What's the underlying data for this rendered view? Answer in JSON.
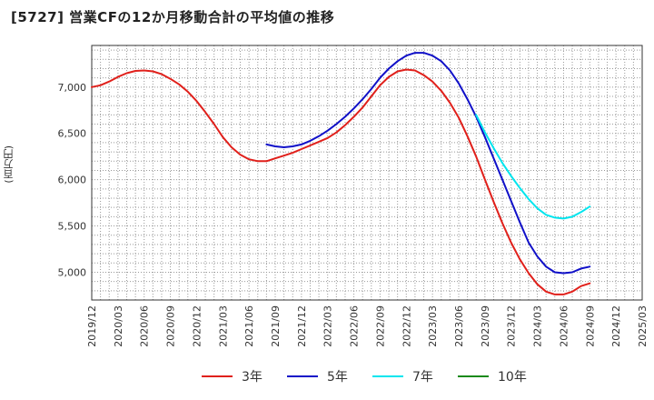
{
  "chart_data": {
    "type": "line",
    "title": "[5727]  営業CFの12か月移動合計の平均値の推移",
    "ylabel": "(百万円)",
    "ylim": [
      4700,
      7450
    ],
    "yticks": [
      5000,
      5500,
      6000,
      6500,
      7000
    ],
    "ytick_labels": [
      "5,000",
      "5,500",
      "6,000",
      "6,500",
      "7,000"
    ],
    "xtick_labels": [
      "2019/12",
      "2020/03",
      "2020/06",
      "2020/09",
      "2020/12",
      "2021/03",
      "2021/06",
      "2021/09",
      "2021/12",
      "2022/03",
      "2022/06",
      "2022/09",
      "2022/12",
      "2023/03",
      "2023/06",
      "2023/09",
      "2023/12",
      "2024/03",
      "2024/06",
      "2024/09",
      "2024/12",
      "2025/03"
    ],
    "x_start": "2019/12",
    "x_end": "2025/03",
    "grid": true,
    "legend_position": "bottom",
    "series": [
      {
        "name": "3年",
        "color": "#e0201b",
        "points": [
          [
            "2019/12",
            7000
          ],
          [
            "2020/01",
            7020
          ],
          [
            "2020/02",
            7060
          ],
          [
            "2020/03",
            7110
          ],
          [
            "2020/04",
            7150
          ],
          [
            "2020/05",
            7175
          ],
          [
            "2020/06",
            7180
          ],
          [
            "2020/07",
            7170
          ],
          [
            "2020/08",
            7140
          ],
          [
            "2020/09",
            7090
          ],
          [
            "2020/10",
            7030
          ],
          [
            "2020/11",
            6950
          ],
          [
            "2020/12",
            6850
          ],
          [
            "2021/01",
            6730
          ],
          [
            "2021/02",
            6600
          ],
          [
            "2021/03",
            6460
          ],
          [
            "2021/04",
            6350
          ],
          [
            "2021/05",
            6270
          ],
          [
            "2021/06",
            6220
          ],
          [
            "2021/07",
            6200
          ],
          [
            "2021/08",
            6200
          ],
          [
            "2021/09",
            6230
          ],
          [
            "2021/10",
            6260
          ],
          [
            "2021/11",
            6290
          ],
          [
            "2021/12",
            6330
          ],
          [
            "2022/01",
            6370
          ],
          [
            "2022/02",
            6410
          ],
          [
            "2022/03",
            6450
          ],
          [
            "2022/04",
            6510
          ],
          [
            "2022/05",
            6590
          ],
          [
            "2022/06",
            6680
          ],
          [
            "2022/07",
            6780
          ],
          [
            "2022/08",
            6900
          ],
          [
            "2022/09",
            7020
          ],
          [
            "2022/10",
            7110
          ],
          [
            "2022/11",
            7170
          ],
          [
            "2022/12",
            7190
          ],
          [
            "2023/01",
            7180
          ],
          [
            "2023/02",
            7130
          ],
          [
            "2023/03",
            7060
          ],
          [
            "2023/04",
            6960
          ],
          [
            "2023/05",
            6830
          ],
          [
            "2023/06",
            6670
          ],
          [
            "2023/07",
            6470
          ],
          [
            "2023/08",
            6250
          ],
          [
            "2023/09",
            6000
          ],
          [
            "2023/10",
            5760
          ],
          [
            "2023/11",
            5530
          ],
          [
            "2023/12",
            5320
          ],
          [
            "2024/01",
            5140
          ],
          [
            "2024/02",
            4990
          ],
          [
            "2024/03",
            4870
          ],
          [
            "2024/04",
            4790
          ],
          [
            "2024/05",
            4760
          ],
          [
            "2024/06",
            4760
          ],
          [
            "2024/07",
            4790
          ],
          [
            "2024/08",
            4850
          ],
          [
            "2024/09",
            4880
          ]
        ]
      },
      {
        "name": "5年",
        "color": "#1010c8",
        "points": [
          [
            "2021/08",
            6380
          ],
          [
            "2021/09",
            6360
          ],
          [
            "2021/10",
            6350
          ],
          [
            "2021/11",
            6360
          ],
          [
            "2021/12",
            6380
          ],
          [
            "2022/01",
            6420
          ],
          [
            "2022/02",
            6470
          ],
          [
            "2022/03",
            6530
          ],
          [
            "2022/04",
            6600
          ],
          [
            "2022/05",
            6680
          ],
          [
            "2022/06",
            6770
          ],
          [
            "2022/07",
            6870
          ],
          [
            "2022/08",
            6980
          ],
          [
            "2022/09",
            7100
          ],
          [
            "2022/10",
            7200
          ],
          [
            "2022/11",
            7280
          ],
          [
            "2022/12",
            7340
          ],
          [
            "2023/01",
            7370
          ],
          [
            "2023/02",
            7370
          ],
          [
            "2023/03",
            7340
          ],
          [
            "2023/04",
            7280
          ],
          [
            "2023/05",
            7180
          ],
          [
            "2023/06",
            7040
          ],
          [
            "2023/07",
            6870
          ],
          [
            "2023/08",
            6680
          ],
          [
            "2023/09",
            6460
          ],
          [
            "2023/10",
            6230
          ],
          [
            "2023/11",
            6000
          ],
          [
            "2023/12",
            5770
          ],
          [
            "2024/01",
            5540
          ],
          [
            "2024/02",
            5320
          ],
          [
            "2024/03",
            5170
          ],
          [
            "2024/04",
            5060
          ],
          [
            "2024/05",
            5000
          ],
          [
            "2024/06",
            4990
          ],
          [
            "2024/07",
            5000
          ],
          [
            "2024/08",
            5040
          ],
          [
            "2024/09",
            5060
          ]
        ]
      },
      {
        "name": "7年",
        "color": "#00e5ee",
        "points": [
          [
            "2023/08",
            6700
          ],
          [
            "2023/09",
            6510
          ],
          [
            "2023/10",
            6340
          ],
          [
            "2023/11",
            6180
          ],
          [
            "2023/12",
            6040
          ],
          [
            "2024/01",
            5910
          ],
          [
            "2024/02",
            5790
          ],
          [
            "2024/03",
            5690
          ],
          [
            "2024/04",
            5620
          ],
          [
            "2024/05",
            5590
          ],
          [
            "2024/06",
            5580
          ],
          [
            "2024/07",
            5600
          ],
          [
            "2024/08",
            5650
          ],
          [
            "2024/09",
            5710
          ]
        ]
      },
      {
        "name": "10年",
        "color": "#1a8a1a",
        "points": []
      }
    ]
  }
}
